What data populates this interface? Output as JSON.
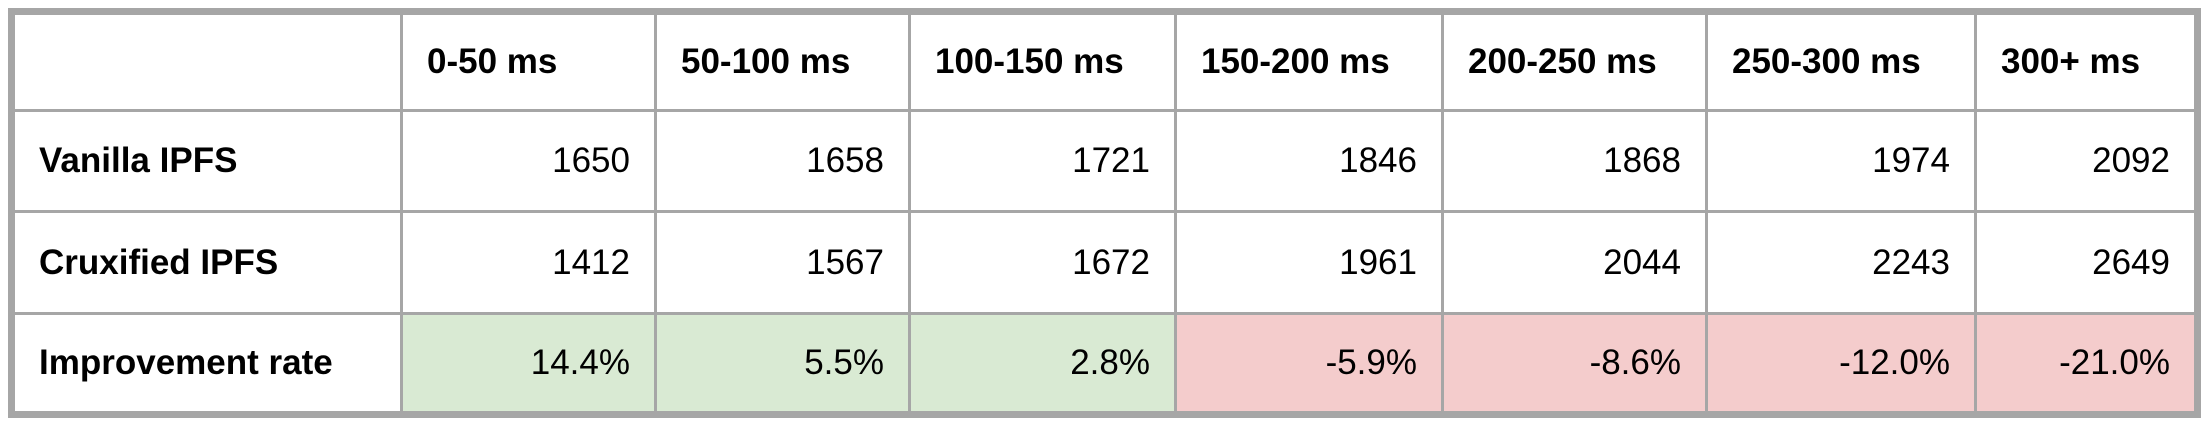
{
  "table": {
    "corner": "",
    "columns": [
      "0-50 ms",
      "50-100 ms",
      "100-150 ms",
      "150-200 ms",
      "200-250 ms",
      "250-300 ms",
      "300+ ms"
    ],
    "rows": [
      {
        "label": "Vanilla IPFS",
        "cells": [
          {
            "value": "1650",
            "fill": "#ffffff"
          },
          {
            "value": "1658",
            "fill": "#ffffff"
          },
          {
            "value": "1721",
            "fill": "#ffffff"
          },
          {
            "value": "1846",
            "fill": "#ffffff"
          },
          {
            "value": "1868",
            "fill": "#ffffff"
          },
          {
            "value": "1974",
            "fill": "#ffffff"
          },
          {
            "value": "2092",
            "fill": "#ffffff"
          }
        ]
      },
      {
        "label": "Cruxified IPFS",
        "cells": [
          {
            "value": "1412",
            "fill": "#ffffff"
          },
          {
            "value": "1567",
            "fill": "#ffffff"
          },
          {
            "value": "1672",
            "fill": "#ffffff"
          },
          {
            "value": "1961",
            "fill": "#ffffff"
          },
          {
            "value": "2044",
            "fill": "#ffffff"
          },
          {
            "value": "2243",
            "fill": "#ffffff"
          },
          {
            "value": "2649",
            "fill": "#ffffff"
          }
        ]
      },
      {
        "label": "Improvement rate",
        "cells": [
          {
            "value": "14.4%",
            "fill": "#d9ead3"
          },
          {
            "value": "5.5%",
            "fill": "#d9ead3"
          },
          {
            "value": "2.8%",
            "fill": "#d9ead3"
          },
          {
            "value": "-5.9%",
            "fill": "#f4cccc"
          },
          {
            "value": "-8.6%",
            "fill": "#f4cccc"
          },
          {
            "value": "-12.0%",
            "fill": "#f4cccc"
          },
          {
            "value": "-21.0%",
            "fill": "#f4cccc"
          }
        ]
      }
    ]
  },
  "colors": {
    "border": "#a6a6a6",
    "positive_fill": "#d9ead3",
    "negative_fill": "#f4cccc",
    "text": "#000000"
  }
}
